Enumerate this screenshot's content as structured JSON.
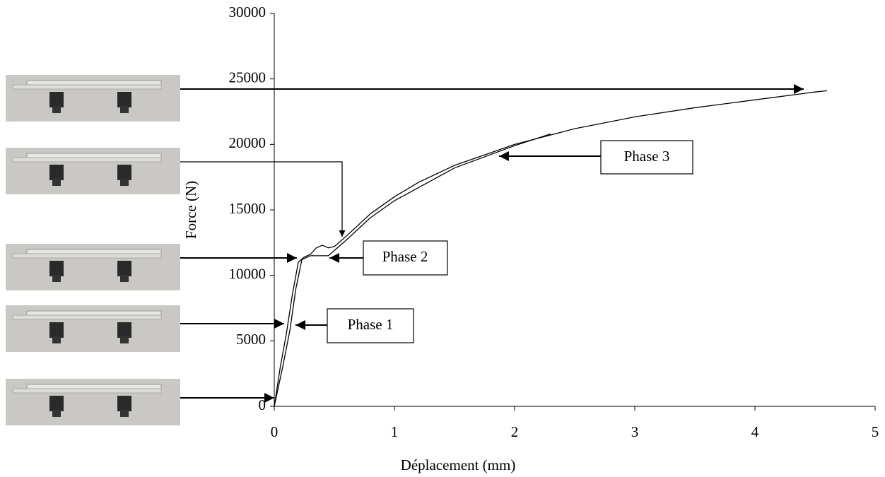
{
  "chart_data": {
    "type": "line",
    "xlabel": "Déplacement (mm)",
    "ylabel": "Force (N)",
    "xlim": [
      0,
      5
    ],
    "xticks": [
      0,
      1,
      2,
      3,
      4,
      5
    ],
    "ylim": [
      0,
      30000
    ],
    "yticks": [
      0,
      5000,
      10000,
      15000,
      20000,
      25000,
      30000
    ],
    "annotations": [
      "Phase 1",
      "Phase 2",
      "Phase 3"
    ],
    "series": [
      {
        "color": "#000000",
        "x": [
          0,
          0.05,
          0.1,
          0.15,
          0.2,
          0.25,
          0.3,
          0.35,
          0.4,
          0.45,
          0.5,
          0.6,
          0.8,
          1,
          1.2,
          1.5,
          2,
          2.5,
          3,
          3.5,
          4,
          4.5,
          4.6
        ],
        "values": [
          0,
          3000,
          5500,
          8500,
          11000,
          11400,
          11600,
          12100,
          12300,
          12100,
          12200,
          13000,
          14700,
          16000,
          17100,
          18400,
          20000,
          21200,
          22100,
          22800,
          23400,
          24000,
          24100
        ]
      },
      {
        "color": "#000000",
        "x": [
          0,
          0.07,
          0.13,
          0.18,
          0.23,
          0.3,
          0.4,
          0.45,
          0.5,
          0.6,
          0.8,
          1,
          1.5,
          2,
          2.3
        ],
        "values": [
          0,
          3000,
          5800,
          9000,
          11200,
          11500,
          11500,
          11500,
          11900,
          12700,
          14400,
          15700,
          18200,
          19900,
          20800
        ]
      }
    ]
  }
}
